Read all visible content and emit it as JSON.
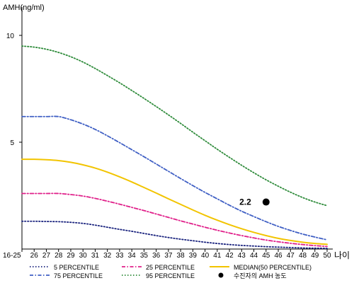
{
  "chart_data": {
    "type": "line",
    "ylabel": "AMH(ng/ml)",
    "xlabel": "나이",
    "yticks": [
      5,
      10
    ],
    "ylim": [
      0,
      11
    ],
    "x": [
      "16-25",
      "26",
      "27",
      "28",
      "29",
      "30",
      "31",
      "32",
      "33",
      "34",
      "35",
      "36",
      "37",
      "38",
      "39",
      "40",
      "41",
      "42",
      "43",
      "44",
      "45",
      "46",
      "47",
      "48",
      "49",
      "50"
    ],
    "series": [
      {
        "name": "5 PERCENTILE",
        "color": "#1a237e",
        "dash": "dotted",
        "values": [
          1.3,
          1.3,
          1.29,
          1.28,
          1.25,
          1.2,
          1.12,
          1.02,
          0.92,
          0.83,
          0.73,
          0.63,
          0.54,
          0.46,
          0.39,
          0.32,
          0.26,
          0.21,
          0.17,
          0.14,
          0.11,
          0.09,
          0.07,
          0.05,
          0.04,
          0.03
        ]
      },
      {
        "name": "75 PERCENTILE",
        "color": "#3f5fc4",
        "dash": "dashdot",
        "values": [
          6.2,
          6.2,
          6.2,
          6.2,
          6.05,
          5.85,
          5.6,
          5.3,
          4.98,
          4.65,
          4.32,
          3.98,
          3.64,
          3.3,
          2.97,
          2.65,
          2.35,
          2.05,
          1.77,
          1.52,
          1.28,
          1.06,
          0.87,
          0.7,
          0.56,
          0.43
        ]
      },
      {
        "name": "25 PERCENTILE",
        "color": "#e0208a",
        "dash": "dashdot",
        "values": [
          2.6,
          2.6,
          2.6,
          2.6,
          2.55,
          2.48,
          2.37,
          2.24,
          2.1,
          1.95,
          1.8,
          1.64,
          1.48,
          1.32,
          1.17,
          1.02,
          0.88,
          0.75,
          0.63,
          0.52,
          0.42,
          0.34,
          0.27,
          0.21,
          0.16,
          0.12
        ]
      },
      {
        "name": "95 PERCENTILE",
        "color": "#2e8b3a",
        "dash": "dotted",
        "values": [
          9.5,
          9.45,
          9.35,
          9.2,
          9.0,
          8.75,
          8.45,
          8.12,
          7.78,
          7.42,
          7.05,
          6.67,
          6.28,
          5.88,
          5.47,
          5.07,
          4.67,
          4.29,
          3.92,
          3.57,
          3.24,
          2.94,
          2.66,
          2.41,
          2.2,
          2.03
        ]
      },
      {
        "name": "MEDIAN(50 PERCENTILE)",
        "color": "#f2c400",
        "dash": "solid",
        "values": [
          4.2,
          4.2,
          4.18,
          4.14,
          4.06,
          3.94,
          3.79,
          3.6,
          3.38,
          3.14,
          2.88,
          2.62,
          2.35,
          2.09,
          1.83,
          1.58,
          1.35,
          1.14,
          0.95,
          0.78,
          0.63,
          0.5,
          0.4,
          0.32,
          0.26,
          0.22
        ]
      }
    ],
    "marker": {
      "name": "수진자의 AMH 농도",
      "x": "45",
      "value": 2.2,
      "label": "2.2",
      "color": "#000000"
    },
    "legend_position": "bottom"
  }
}
